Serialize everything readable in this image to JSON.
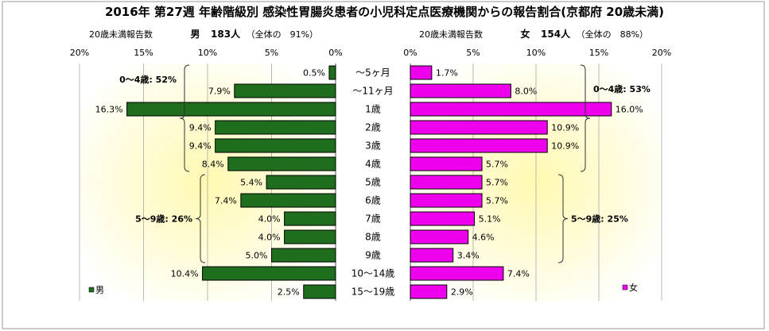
{
  "title": "2016年 第27週 年齢階級別 感染性胃腸炎患者の小児科定点医療機関からの報告割合(京都府 20歳未満)",
  "left_header": {
    "label": "20歳未満報告数",
    "sex": "男",
    "count": "183人",
    "share": "（全体の　91%）"
  },
  "right_header": {
    "label": "20歳未満報告数",
    "sex": "女",
    "count": "154人",
    "share": "（全体の　88%）"
  },
  "colors": {
    "male": "#1e6e1e",
    "female": "#ee00ee",
    "plot_bg_outer": "#ffffff",
    "plot_bg_inner": "#fff9b0"
  },
  "chart_data": {
    "type": "bar",
    "categories": [
      "～5ヶ月",
      "～11ヶ月",
      "1歳",
      "2歳",
      "3歳",
      "4歳",
      "5歳",
      "6歳",
      "7歳",
      "8歳",
      "9歳",
      "10～14歳",
      "15～19歳"
    ],
    "series": [
      {
        "name": "男",
        "values": [
          0.5,
          7.9,
          16.3,
          9.4,
          9.4,
          8.4,
          5.4,
          7.4,
          4.0,
          4.0,
          5.0,
          10.4,
          2.5
        ],
        "labels": [
          "0.5%",
          "7.9%",
          "16.3%",
          "9.4%",
          "9.4%",
          "8.4%",
          "5.4%",
          "7.4%",
          "4.0%",
          "4.0%",
          "5.0%",
          "10.4%",
          "2.5%"
        ]
      },
      {
        "name": "女",
        "values": [
          1.7,
          8.0,
          16.0,
          10.9,
          10.9,
          5.7,
          5.7,
          5.7,
          5.1,
          4.6,
          3.4,
          7.4,
          2.9
        ],
        "labels": [
          "1.7%",
          "8.0%",
          "16.0%",
          "10.9%",
          "10.9%",
          "5.7%",
          "5.7%",
          "5.7%",
          "5.1%",
          "4.6%",
          "3.4%",
          "7.4%",
          "2.9%"
        ]
      }
    ],
    "xlim": [
      0,
      20
    ],
    "left_ticks": [
      "20%",
      "15%",
      "10%",
      "5%",
      "0%"
    ],
    "right_ticks": [
      "0%",
      "5%",
      "10%",
      "15%",
      "20%"
    ],
    "annotations": {
      "male": [
        {
          "text": "0～4歳: 52%",
          "from": 0,
          "to": 5
        },
        {
          "text": "5～9歳: 26%",
          "from": 6,
          "to": 10
        }
      ],
      "female": [
        {
          "text": "0～4歳: 53%",
          "from": 0,
          "to": 5
        },
        {
          "text": "5～9歳: 25%",
          "from": 6,
          "to": 10
        }
      ]
    },
    "grid": true,
    "legend": "bottom-left of each panel"
  }
}
